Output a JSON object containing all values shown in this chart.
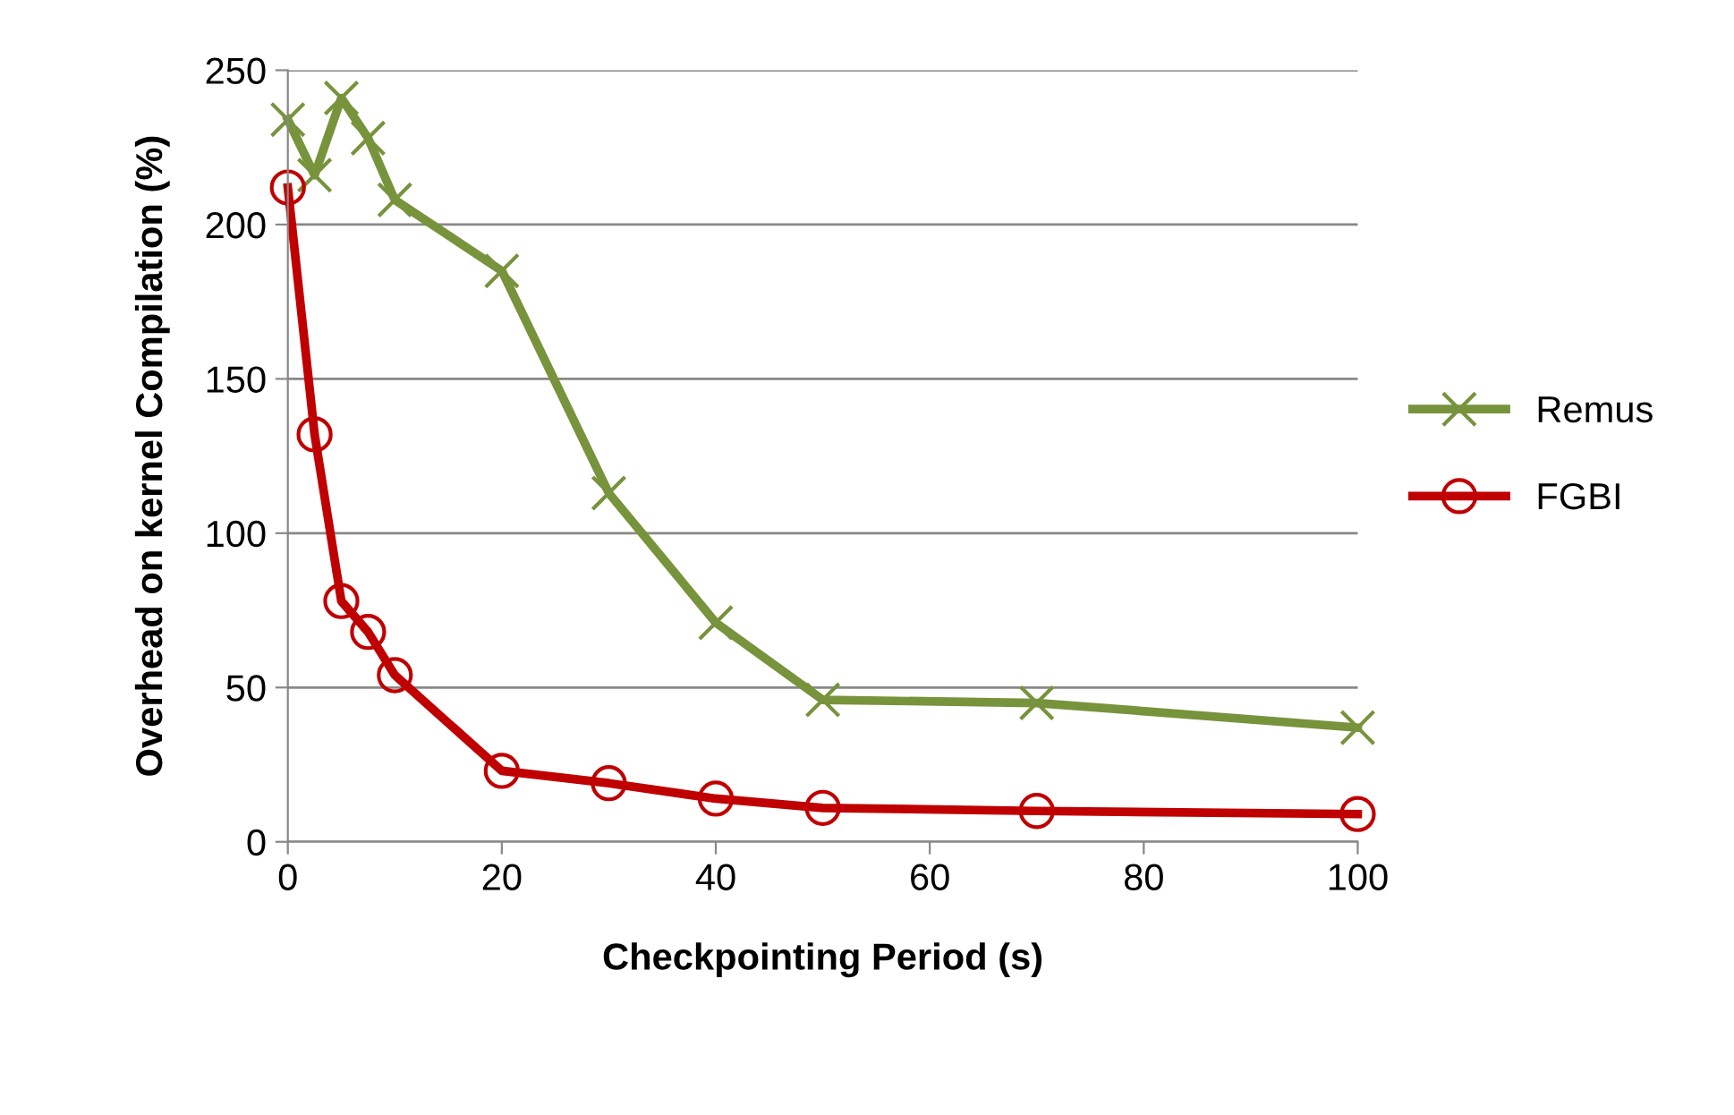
{
  "chart_data": {
    "type": "line",
    "xlabel": "Checkpointing Period (s)",
    "ylabel": "Overhead on kernel Compilation (%)",
    "x": [
      0,
      2.5,
      5,
      7.5,
      10,
      20,
      30,
      40,
      50,
      70,
      100
    ],
    "series": [
      {
        "name": "Remus",
        "color": "#77933c",
        "marker": "cross",
        "values": [
          234,
          216,
          241,
          228,
          208,
          185,
          113,
          71,
          46,
          45,
          37
        ]
      },
      {
        "name": "FGBI",
        "color": "#c00000",
        "marker": "circle",
        "values": [
          212,
          132,
          78,
          68,
          54,
          23,
          19,
          14,
          11,
          10,
          9
        ]
      }
    ],
    "xlim": [
      0,
      100
    ],
    "xticks": [
      0,
      20,
      40,
      60,
      80,
      100
    ],
    "ylim": [
      0,
      250
    ],
    "yticks": [
      0,
      50,
      100,
      150,
      200,
      250
    ],
    "grid": "y",
    "legend": "right",
    "line_style": "solid"
  }
}
